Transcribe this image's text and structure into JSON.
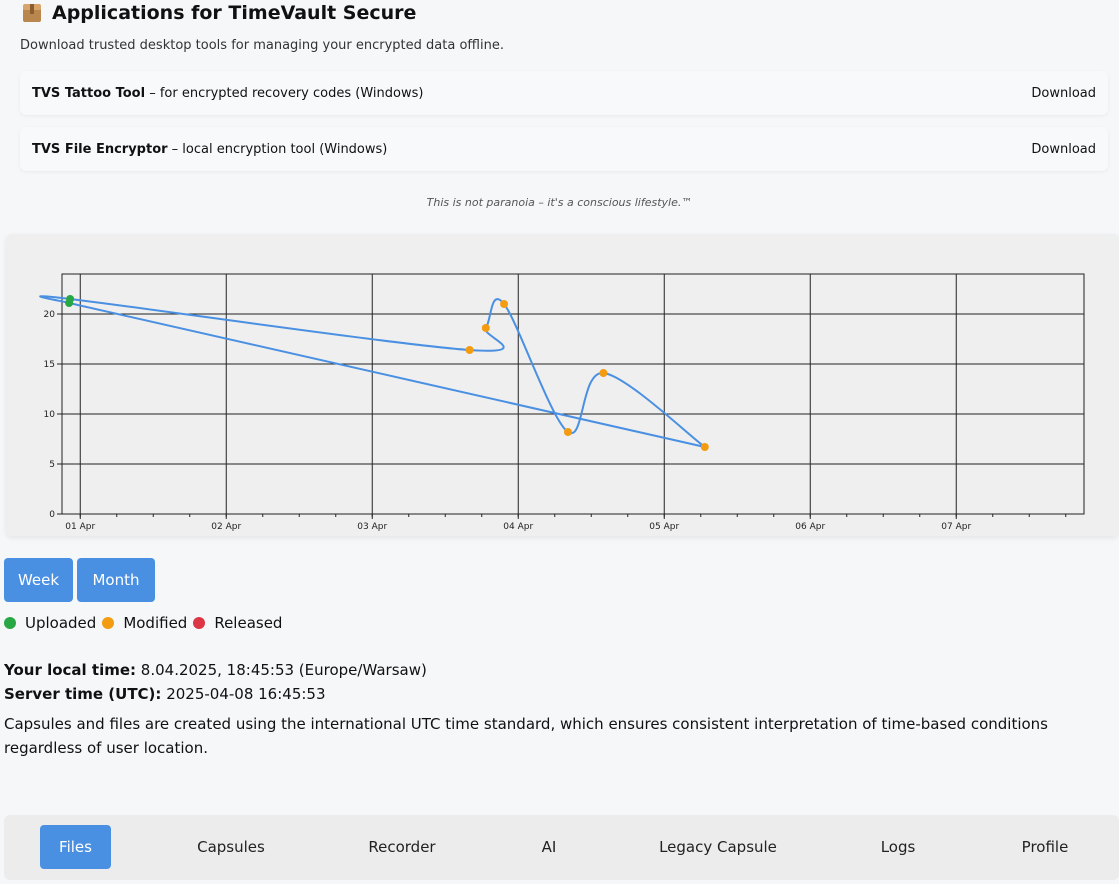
{
  "header": {
    "icon": "package-icon",
    "title": "Applications for TimeVault Secure",
    "subtitle": "Download trusted desktop tools for managing your encrypted data offline."
  },
  "apps": [
    {
      "name": "TVS Tattoo Tool",
      "desc": " – for encrypted recovery codes (Windows)",
      "action": "Download"
    },
    {
      "name": "TVS File Encryptor",
      "desc": " – local encryption tool (Windows)",
      "action": "Download"
    }
  ],
  "tagline": "This is not paranoia – it's a conscious lifestyle.™",
  "chart_data": {
    "type": "line",
    "x_ticks": [
      "01 Apr",
      "02 Apr",
      "03 Apr",
      "04 Apr",
      "05 Apr",
      "06 Apr",
      "07 Apr"
    ],
    "y_ticks": [
      0,
      5,
      10,
      15,
      20
    ],
    "ylim": [
      0,
      24
    ],
    "xlim": [
      "2025-03-31T21:00",
      "2025-04-07T21:00"
    ],
    "grid": true,
    "series": [
      {
        "color": "#4a90e2",
        "points": [
          {
            "x": "2025-03-31T22:10",
            "y": 21.1,
            "status": "uploaded"
          },
          {
            "x": "2025-03-31T22:20",
            "y": 21.5,
            "status": "uploaded"
          },
          {
            "x": "2025-04-03T16:00",
            "y": 16.4,
            "status": "modified"
          },
          {
            "x": "2025-04-03T18:40",
            "y": 18.6,
            "status": "modified"
          },
          {
            "x": "2025-04-03T21:40",
            "y": 21.0,
            "status": "modified"
          },
          {
            "x": "2025-04-04T08:10",
            "y": 8.2,
            "status": "modified"
          },
          {
            "x": "2025-04-04T14:00",
            "y": 14.1,
            "status": "modified"
          },
          {
            "x": "2025-04-05T06:40",
            "y": 6.7,
            "status": "modified"
          }
        ]
      }
    ],
    "status_colors": {
      "uploaded": "#28a745",
      "modified": "#f39c12",
      "released": "#dc3545"
    }
  },
  "range_buttons": [
    "Week",
    "Month"
  ],
  "legend": [
    {
      "label": "Uploaded",
      "color": "#28a745"
    },
    {
      "label": "Modified",
      "color": "#f39c12"
    },
    {
      "label": "Released",
      "color": "#dc3545"
    }
  ],
  "time": {
    "local_label": "Your local time:",
    "local_value": " 8.04.2025, 18:45:53 (Europe/Warsaw)",
    "server_label": "Server time (UTC):",
    "server_value": " 2025-04-08 16:45:53"
  },
  "note": "Capsules and files are created using the international UTC time standard, which ensures consistent interpretation of time-based conditions regardless of user location.",
  "nav": [
    {
      "label": "Files",
      "active": true
    },
    {
      "label": "Capsules",
      "active": false
    },
    {
      "label": "Recorder",
      "active": false
    },
    {
      "label": "AI",
      "active": false
    },
    {
      "label": "Legacy Capsule",
      "active": false
    },
    {
      "label": "Logs",
      "active": false
    },
    {
      "label": "Profile",
      "active": false
    }
  ]
}
